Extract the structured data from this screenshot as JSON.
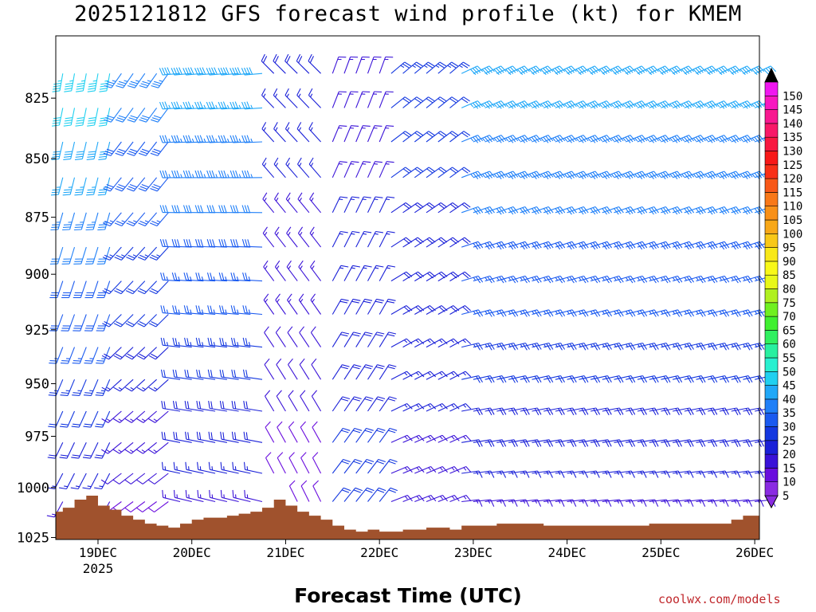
{
  "title": "2025121812 GFS forecast wind profile (kt) for KMEM",
  "credit": "coolwx.com/models",
  "chart_data": {
    "type": "wind_barb_profile",
    "xlabel": "Forecast Time (UTC)",
    "ylabel": "",
    "x_range_hours": [
      -10.8,
      169.2
    ],
    "x_origin": "2025-12-19 00Z",
    "x_ticks": [
      {
        "hour": 0,
        "label": "19DEC",
        "sublabel": "2025"
      },
      {
        "hour": 24,
        "label": "20DEC",
        "sublabel": ""
      },
      {
        "hour": 48,
        "label": "21DEC",
        "sublabel": ""
      },
      {
        "hour": 72,
        "label": "22DEC",
        "sublabel": ""
      },
      {
        "hour": 96,
        "label": "23DEC",
        "sublabel": ""
      },
      {
        "hour": 120,
        "label": "24DEC",
        "sublabel": ""
      },
      {
        "hour": 144,
        "label": "25DEC",
        "sublabel": ""
      },
      {
        "hour": 168,
        "label": "26DEC",
        "sublabel": ""
      }
    ],
    "y_range_hpa": [
      1026,
      800
    ],
    "y_ticks": [
      825,
      850,
      875,
      900,
      925,
      950,
      975,
      1000,
      1025
    ],
    "barb_levels_hpa": [
      815,
      829,
      843,
      858,
      873,
      888,
      903,
      918,
      933,
      948,
      963,
      978,
      993,
      1007,
      1021
    ],
    "surface_pressure": [
      {
        "hour": -10.8,
        "hpa": 1012
      },
      {
        "hour": -9,
        "hpa": 1010
      },
      {
        "hour": -6,
        "hpa": 1006
      },
      {
        "hour": -3,
        "hpa": 1004
      },
      {
        "hour": 0,
        "hpa": 1009
      },
      {
        "hour": 3,
        "hpa": 1011
      },
      {
        "hour": 6,
        "hpa": 1014
      },
      {
        "hour": 9,
        "hpa": 1016
      },
      {
        "hour": 12,
        "hpa": 1018
      },
      {
        "hour": 15,
        "hpa": 1019
      },
      {
        "hour": 18,
        "hpa": 1020
      },
      {
        "hour": 21,
        "hpa": 1018
      },
      {
        "hour": 24,
        "hpa": 1016
      },
      {
        "hour": 27,
        "hpa": 1015
      },
      {
        "hour": 30,
        "hpa": 1015
      },
      {
        "hour": 33,
        "hpa": 1014
      },
      {
        "hour": 36,
        "hpa": 1013
      },
      {
        "hour": 39,
        "hpa": 1012
      },
      {
        "hour": 42,
        "hpa": 1010
      },
      {
        "hour": 45,
        "hpa": 1006
      },
      {
        "hour": 48,
        "hpa": 1009
      },
      {
        "hour": 51,
        "hpa": 1012
      },
      {
        "hour": 54,
        "hpa": 1014
      },
      {
        "hour": 57,
        "hpa": 1016
      },
      {
        "hour": 60,
        "hpa": 1019
      },
      {
        "hour": 63,
        "hpa": 1021
      },
      {
        "hour": 66,
        "hpa": 1022
      },
      {
        "hour": 69,
        "hpa": 1021
      },
      {
        "hour": 72,
        "hpa": 1022
      },
      {
        "hour": 75,
        "hpa": 1022
      },
      {
        "hour": 78,
        "hpa": 1021
      },
      {
        "hour": 81,
        "hpa": 1021
      },
      {
        "hour": 84,
        "hpa": 1020
      },
      {
        "hour": 87,
        "hpa": 1020
      },
      {
        "hour": 90,
        "hpa": 1021
      },
      {
        "hour": 93,
        "hpa": 1019
      },
      {
        "hour": 96,
        "hpa": 1019
      },
      {
        "hour": 99,
        "hpa": 1019
      },
      {
        "hour": 102,
        "hpa": 1018
      },
      {
        "hour": 105,
        "hpa": 1018
      },
      {
        "hour": 108,
        "hpa": 1018
      },
      {
        "hour": 111,
        "hpa": 1018
      },
      {
        "hour": 114,
        "hpa": 1019
      },
      {
        "hour": 117,
        "hpa": 1019
      },
      {
        "hour": 120,
        "hpa": 1019
      },
      {
        "hour": 123,
        "hpa": 1019
      },
      {
        "hour": 126,
        "hpa": 1019
      },
      {
        "hour": 129,
        "hpa": 1019
      },
      {
        "hour": 132,
        "hpa": 1019
      },
      {
        "hour": 135,
        "hpa": 1019
      },
      {
        "hour": 138,
        "hpa": 1019
      },
      {
        "hour": 141,
        "hpa": 1018
      },
      {
        "hour": 144,
        "hpa": 1018
      },
      {
        "hour": 147,
        "hpa": 1018
      },
      {
        "hour": 150,
        "hpa": 1018
      },
      {
        "hour": 153,
        "hpa": 1018
      },
      {
        "hour": 156,
        "hpa": 1018
      },
      {
        "hour": 159,
        "hpa": 1018
      },
      {
        "hour": 162,
        "hpa": 1016
      },
      {
        "hour": 165,
        "hpa": 1014
      },
      {
        "hour": 169.2,
        "hpa": 1014
      }
    ],
    "wind_segments": [
      {
        "from_hour": -10.8,
        "to_hour": 4,
        "dir_deg": 200,
        "speed_top_kt": 45,
        "speed_bottom_kt": 15
      },
      {
        "from_hour": 4,
        "to_hour": 20,
        "dir_deg": 225,
        "speed_top_kt": 35,
        "speed_bottom_kt": 10
      },
      {
        "from_hour": 20,
        "to_hour": 44,
        "dir_deg": 275,
        "speed_top_kt": 40,
        "speed_bottom_kt": 15
      },
      {
        "from_hour": 44,
        "to_hour": 58,
        "dir_deg": 325,
        "speed_top_kt": 20,
        "speed_bottom_kt": 10
      },
      {
        "from_hour": 58,
        "to_hour": 72,
        "dir_deg": 30,
        "speed_top_kt": 15,
        "speed_bottom_kt": 25
      },
      {
        "from_hour": 72,
        "to_hour": 90,
        "dir_deg": 60,
        "speed_top_kt": 25,
        "speed_bottom_kt": 15
      },
      {
        "from_hour": 90,
        "to_hour": 169.2,
        "dir_deg": 75,
        "speed_top_kt": 40,
        "speed_bottom_kt": 15
      }
    ],
    "colorbar": {
      "labels": [
        5,
        10,
        15,
        20,
        25,
        30,
        35,
        40,
        45,
        50,
        55,
        60,
        65,
        70,
        75,
        80,
        85,
        90,
        95,
        100,
        105,
        110,
        115,
        120,
        125,
        130,
        135,
        140,
        145,
        150
      ],
      "colors": [
        "#8a2be2",
        "#6a0dde",
        "#3a12d8",
        "#1a20d8",
        "#1438e0",
        "#1a5af0",
        "#2080f8",
        "#20a8f8",
        "#20d0f0",
        "#28f0d0",
        "#28f0a0",
        "#30f060",
        "#40f030",
        "#70f020",
        "#b0f020",
        "#e8f818",
        "#f8f818",
        "#f8e818",
        "#f8c818",
        "#f8a818",
        "#f89018",
        "#f87818",
        "#f85818",
        "#f83018",
        "#f81818",
        "#f81840",
        "#f81868",
        "#f81890",
        "#f818c0",
        "#f018f0"
      ]
    }
  }
}
